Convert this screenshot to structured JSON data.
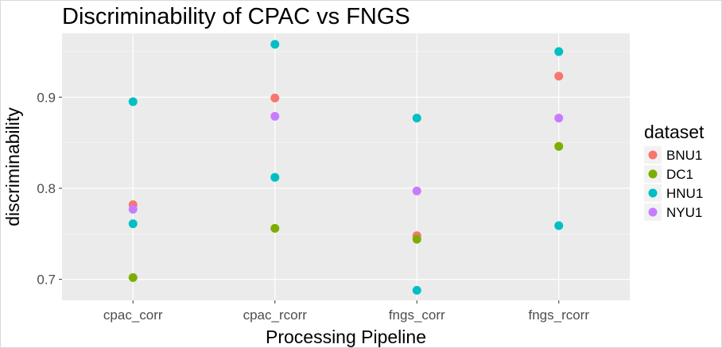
{
  "chart_data": {
    "type": "scatter",
    "title": "Discriminability of CPAC vs FNGS",
    "xlabel": "Processing Pipeline",
    "ylabel": "discriminability",
    "categories": [
      "cpac_corr",
      "cpac_rcorr",
      "fngs_corr",
      "fngs_rcorr"
    ],
    "yticks": [
      0.7,
      0.8,
      0.9
    ],
    "ytick_labels": [
      "0.7",
      "0.8",
      "0.9"
    ],
    "ylim": [
      0.677,
      0.97
    ],
    "grid": true,
    "legend": {
      "title": "dataset",
      "position": "right"
    },
    "series": [
      {
        "name": "BNU1",
        "color": "#F8766D",
        "values": [
          0.782,
          0.899,
          0.748,
          0.923
        ]
      },
      {
        "name": "DC1",
        "color": "#7CAE00",
        "values": [
          0.702,
          0.756,
          0.744,
          0.846
        ]
      },
      {
        "name": "HNU1",
        "color": "#00BFC4",
        "values": [
          [
            0.895,
            0.761
          ],
          [
            0.958,
            0.812
          ],
          [
            0.877,
            0.688
          ],
          [
            0.95,
            0.759
          ]
        ]
      },
      {
        "name": "NYU1",
        "color": "#C77CFF",
        "values": [
          0.777,
          0.879,
          0.797,
          0.877
        ]
      }
    ],
    "panel_background": "#EBEBEB",
    "grid_color": "#FFFFFF"
  }
}
